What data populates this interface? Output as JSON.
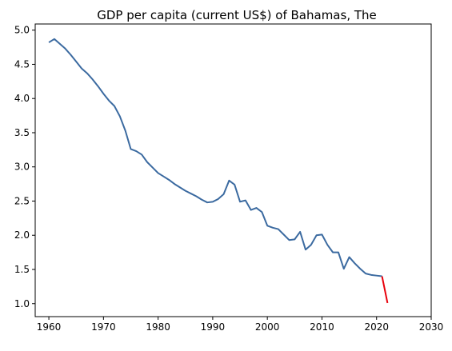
{
  "chart_data": {
    "type": "line",
    "title": "GDP per capita (current US$) of Bahamas, The",
    "xlabel": "",
    "ylabel": "",
    "xlim": [
      1957.5,
      2030
    ],
    "ylim": [
      0.81,
      5.09
    ],
    "xticks": [
      1960,
      1970,
      1980,
      1990,
      2000,
      2010,
      2020,
      2030
    ],
    "xtick_labels": [
      "1960",
      "1970",
      "1980",
      "1990",
      "2000",
      "2010",
      "2020",
      "2030"
    ],
    "yticks": [
      1.0,
      1.5,
      2.0,
      2.5,
      3.0,
      3.5,
      4.0,
      4.5,
      5.0
    ],
    "ytick_labels": [
      "1.0",
      "1.5",
      "2.0",
      "2.5",
      "3.0",
      "3.5",
      "4.0",
      "4.5",
      "5.0"
    ],
    "grid": false,
    "series": [
      {
        "color": "#3b6aa0",
        "x": [
          1960,
          1961,
          1962,
          1963,
          1964,
          1965,
          1966,
          1967,
          1968,
          1969,
          1970,
          1971,
          1972,
          1973,
          1974,
          1975,
          1976,
          1977,
          1978,
          1979,
          1980,
          1981,
          1982,
          1983,
          1984,
          1985,
          1986,
          1987,
          1988,
          1989,
          1990,
          1991,
          1992,
          1993,
          1994,
          1995,
          1996,
          1997,
          1998,
          1999,
          2000,
          2001,
          2002,
          2003,
          2004,
          2005,
          2006,
          2007,
          2008,
          2009,
          2010,
          2011,
          2012,
          2013,
          2014,
          2015,
          2016,
          2017,
          2018,
          2019,
          2020,
          2021
        ],
        "y": [
          4.82,
          4.87,
          4.8,
          4.73,
          4.64,
          4.54,
          4.44,
          4.37,
          4.28,
          4.18,
          4.07,
          3.97,
          3.89,
          3.74,
          3.53,
          3.26,
          3.23,
          3.18,
          3.07,
          2.99,
          2.91,
          2.86,
          2.81,
          2.75,
          2.7,
          2.65,
          2.61,
          2.57,
          2.52,
          2.48,
          2.49,
          2.53,
          2.6,
          2.8,
          2.74,
          2.49,
          2.51,
          2.37,
          2.4,
          2.34,
          2.14,
          2.11,
          2.09,
          2.01,
          1.93,
          1.94,
          2.05,
          1.79,
          1.86,
          2.0,
          2.01,
          1.86,
          1.75,
          1.75,
          1.51,
          1.68,
          1.59,
          1.51,
          1.44,
          1.42,
          1.41,
          1.4
        ]
      },
      {
        "color": "#e8000b",
        "x": [
          2021,
          2022
        ],
        "y": [
          1.4,
          1.01
        ]
      }
    ]
  }
}
